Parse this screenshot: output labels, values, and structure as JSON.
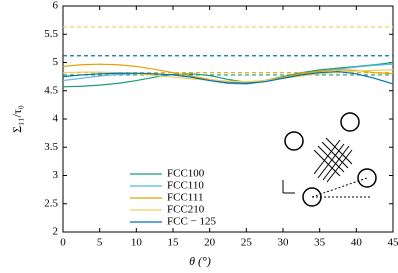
{
  "chart_data": {
    "type": "line",
    "xlabel": "θ (°)",
    "ylabel": "Σ₁₁/τ₀",
    "x": [
      0,
      2.5,
      5,
      7.5,
      10,
      12.5,
      15,
      17.5,
      20,
      22.5,
      25,
      27.5,
      30,
      32.5,
      35,
      37.5,
      40,
      42.5,
      45
    ],
    "xlim": [
      0,
      45
    ],
    "xticks": [
      0,
      5,
      10,
      15,
      20,
      25,
      30,
      35,
      40,
      45
    ],
    "ylim": [
      2,
      6
    ],
    "yticks": [
      2,
      2.5,
      3,
      3.5,
      4,
      4.5,
      5,
      5.5,
      6
    ],
    "series": [
      {
        "name": "FCC100",
        "color": "#1b9e77",
        "reference": 4.78,
        "values": [
          4.57,
          4.58,
          4.6,
          4.63,
          4.68,
          4.74,
          4.79,
          4.8,
          4.77,
          4.7,
          4.65,
          4.68,
          4.75,
          4.82,
          4.87,
          4.9,
          4.93,
          4.96,
          5.0
        ]
      },
      {
        "name": "FCC110",
        "color": "#56b4e9",
        "values": [
          4.68,
          4.72,
          4.76,
          4.79,
          4.8,
          4.8,
          4.78,
          4.74,
          4.68,
          4.63,
          4.62,
          4.66,
          4.72,
          4.79,
          4.84,
          4.88,
          4.92,
          4.95,
          4.97
        ]
      },
      {
        "name": "FCC111",
        "color": "#e6a000",
        "reference": 4.82,
        "values": [
          4.93,
          4.96,
          4.97,
          4.96,
          4.93,
          4.88,
          4.82,
          4.76,
          4.7,
          4.66,
          4.65,
          4.68,
          4.74,
          4.8,
          4.85,
          4.87,
          4.86,
          4.82,
          4.8
        ]
      },
      {
        "name": "FCC210",
        "color": "#f0d060",
        "reference": 5.63,
        "values": [
          4.82,
          4.83,
          4.83,
          4.82,
          4.8,
          4.77,
          4.74,
          4.71,
          4.69,
          4.67,
          4.66,
          4.68,
          4.72,
          4.76,
          4.8,
          4.83,
          4.85,
          4.86,
          4.87
        ]
      },
      {
        "name": "FCC − 125",
        "color": "#0072b2",
        "reference": 5.12,
        "values": [
          4.75,
          4.78,
          4.8,
          4.81,
          4.81,
          4.8,
          4.78,
          4.74,
          4.68,
          4.64,
          4.63,
          4.66,
          4.72,
          4.78,
          4.82,
          4.84,
          4.8,
          4.72,
          4.62
        ]
      }
    ]
  }
}
